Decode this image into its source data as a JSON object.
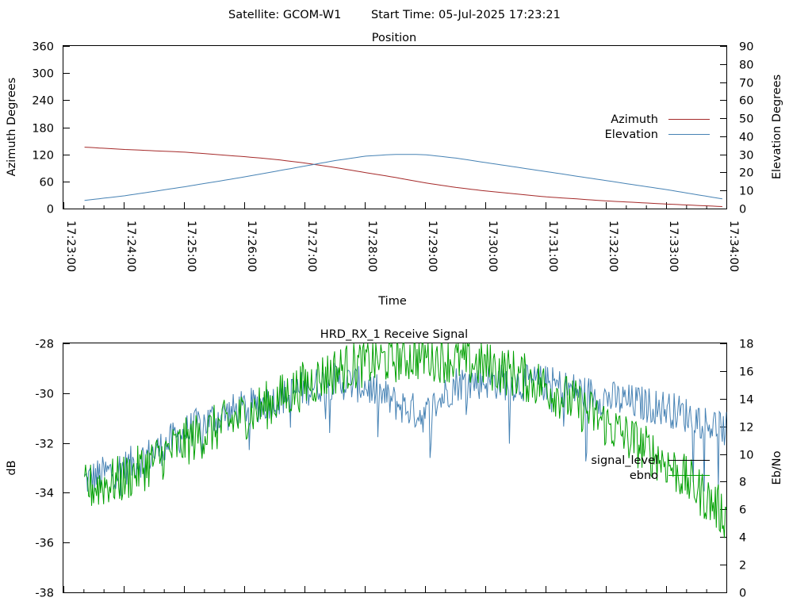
{
  "header": {
    "satellite": "Satellite: GCOM-W1",
    "start_time": "Start Time: 05-Jul-2025 17:23:21"
  },
  "chart_data": [
    {
      "type": "line",
      "title": "Position",
      "xlabel": "Time",
      "ylabel": "Azimuth Degrees",
      "y2label": "Elevation Degrees",
      "x_tick_labels": [
        "17:23:00",
        "17:24:00",
        "17:25:00",
        "17:26:00",
        "17:27:00",
        "17:28:00",
        "17:29:00",
        "17:30:00",
        "17:31:00",
        "17:32:00",
        "17:33:00",
        "17:34:00"
      ],
      "xlim": [
        "17:23:00",
        "17:34:00"
      ],
      "ylim": [
        0,
        360
      ],
      "y_ticks": [
        "0",
        "60",
        "120",
        "180",
        "240",
        "300",
        "360"
      ],
      "y2lim": [
        0,
        90
      ],
      "y2_ticks": [
        "0",
        "10",
        "20",
        "30",
        "40",
        "50",
        "60",
        "70",
        "80",
        "90"
      ],
      "legend_position": "right",
      "grid": false,
      "x": [
        "17:23:21",
        "17:24:00",
        "17:25:00",
        "17:26:00",
        "17:26:30",
        "17:27:00",
        "17:27:30",
        "17:28:00",
        "17:28:30",
        "17:28:45",
        "17:29:00",
        "17:29:30",
        "17:30:00",
        "17:31:00",
        "17:32:00",
        "17:33:00",
        "17:34:00"
      ],
      "series": [
        {
          "name": "Azimuth",
          "axis": "left",
          "color": "#a52a2a",
          "values": [
            136,
            131,
            125,
            115,
            109,
            101,
            91,
            80,
            69,
            63,
            57,
            47,
            39,
            26,
            17,
            10,
            4
          ]
        },
        {
          "name": "Elevation",
          "axis": "right",
          "color": "#4682b4",
          "values": [
            4.5,
            7,
            12,
            17.5,
            20.5,
            23.5,
            26.5,
            29,
            30,
            30,
            29.8,
            28,
            25.5,
            20.5,
            15.5,
            10.5,
            5
          ]
        }
      ]
    },
    {
      "type": "line",
      "title": "HRD_RX_1 Receive Signal",
      "xlabel": "",
      "ylabel": "dB",
      "y2label": "Eb/No",
      "xlim": [
        "17:23:00",
        "17:34:00"
      ],
      "ylim": [
        -38,
        -28
      ],
      "y_ticks": [
        "-38",
        "-36",
        "-34",
        "-32",
        "-30",
        "-28"
      ],
      "y2lim": [
        0,
        18
      ],
      "y2_ticks": [
        "0",
        "2",
        "4",
        "6",
        "8",
        "10",
        "12",
        "14",
        "16",
        "18"
      ],
      "legend_position": "right",
      "grid": false,
      "x": [
        "17:23:21",
        "17:24:00",
        "17:24:30",
        "17:25:00",
        "17:25:30",
        "17:26:00",
        "17:26:30",
        "17:27:00",
        "17:27:30",
        "17:28:00",
        "17:28:30",
        "17:29:00",
        "17:29:30",
        "17:30:00",
        "17:30:30",
        "17:31:00",
        "17:31:30",
        "17:32:00",
        "17:32:30",
        "17:33:00",
        "17:33:30",
        "17:34:00"
      ],
      "series": [
        {
          "name": "signal_level",
          "axis": "left",
          "color": "#4682b4",
          "values": [
            -33.5,
            -33.0,
            -32.4,
            -31.6,
            -31.0,
            -30.6,
            -30.3,
            -29.8,
            -29.5,
            -29.7,
            -30.4,
            -30.9,
            -29.6,
            -29.5,
            -29.6,
            -29.6,
            -29.9,
            -30.2,
            -30.4,
            -30.6,
            -31.0,
            -31.5
          ]
        },
        {
          "name": "ebno",
          "axis": "right",
          "color": "#00a000",
          "values": [
            7.5,
            8.2,
            9.5,
            10.8,
            11.8,
            12.8,
            13.8,
            15.0,
            16.0,
            16.6,
            16.9,
            17.1,
            16.8,
            16.4,
            15.8,
            14.9,
            13.6,
            12.2,
            10.8,
            9.4,
            7.5,
            5.5
          ]
        }
      ]
    }
  ]
}
